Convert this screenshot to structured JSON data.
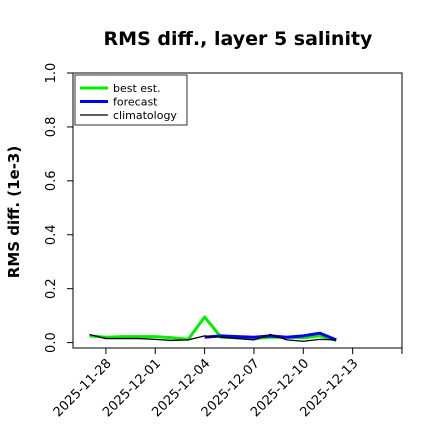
{
  "chart_data": {
    "type": "line",
    "title": "RMS diff., layer 5 salinity",
    "ylabel": "RMS diff. (1e-3)",
    "xlabel": "",
    "ylim": [
      -0.02,
      1.0
    ],
    "y_ticks": [
      0.0,
      0.2,
      0.4,
      0.6,
      0.8,
      1.0
    ],
    "y_tick_labels": [
      "0.0",
      "0.2",
      "0.4",
      "0.6",
      "0.8",
      "1.0"
    ],
    "xlim": [
      "2025-11-26",
      "2025-12-16"
    ],
    "x_ticks": [
      "2025-11-28",
      "2025-12-01",
      "2025-12-04",
      "2025-12-07",
      "2025-12-10",
      "2025-12-13",
      "2025-12-16"
    ],
    "x_tick_labels": [
      "2025-11-28",
      "2025-12-01",
      "2025-12-04",
      "2025-12-07",
      "2025-12-10",
      "2025-12-13",
      ""
    ],
    "highlighted_tick": "2025-12-04",
    "highlight_color": "#228b22",
    "grid": false,
    "legend_position": "top-left",
    "series": [
      {
        "name": "best est.",
        "color": "#00ee00",
        "x": [
          "2025-11-27",
          "2025-11-28",
          "2025-11-29",
          "2025-11-30",
          "2025-12-01",
          "2025-12-02",
          "2025-12-03",
          "2025-12-04",
          "2025-12-05",
          "2025-12-06",
          "2025-12-07",
          "2025-12-08",
          "2025-12-09",
          "2025-12-10",
          "2025-12-11",
          "2025-12-12"
        ],
        "values": [
          0.025,
          0.02,
          0.022,
          0.022,
          0.022,
          0.018,
          0.012,
          0.095,
          0.02,
          0.018,
          0.015,
          0.02,
          0.02,
          0.018,
          0.025,
          0.008
        ]
      },
      {
        "name": "forecast",
        "color": "#0000ee",
        "x": [
          "2025-12-04",
          "2025-12-05",
          "2025-12-06",
          "2025-12-07",
          "2025-12-08",
          "2025-12-09",
          "2025-12-10",
          "2025-12-11",
          "2025-12-12"
        ],
        "values": [
          0.02,
          0.025,
          0.022,
          0.02,
          0.025,
          0.02,
          0.025,
          0.035,
          0.01
        ]
      },
      {
        "name": "climatology",
        "color": "#000000",
        "x": [
          "2025-11-27",
          "2025-11-28",
          "2025-11-29",
          "2025-11-30",
          "2025-12-01",
          "2025-12-02",
          "2025-12-03",
          "2025-12-04",
          "2025-12-05",
          "2025-12-06",
          "2025-12-07",
          "2025-12-08",
          "2025-12-09",
          "2025-12-10",
          "2025-12-11",
          "2025-12-12"
        ],
        "values": [
          0.03,
          0.015,
          0.015,
          0.015,
          0.012,
          0.008,
          0.01,
          0.025,
          0.02,
          0.015,
          0.01,
          0.03,
          0.01,
          0.005,
          0.012,
          0.01
        ]
      }
    ]
  }
}
